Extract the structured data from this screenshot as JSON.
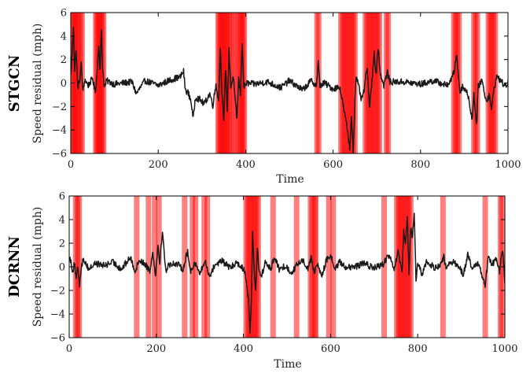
{
  "chart_data": [
    {
      "type": "line",
      "row_label": "STGCN",
      "xlabel": "Time",
      "ylabel": "Speed residual (mph)",
      "xlim": [
        0,
        1000
      ],
      "ylim": [
        -6,
        6
      ],
      "xticks": [
        0,
        200,
        400,
        600,
        800,
        1000
      ],
      "yticks": [
        -6,
        -4,
        -2,
        0,
        2,
        4,
        6
      ],
      "highlight_color": "#ff0000",
      "line_color": "#1a1a1a",
      "highlighted_times": [
        2,
        5,
        8,
        11,
        14,
        18,
        22,
        26,
        57,
        60,
        63,
        66,
        69,
        72,
        75,
        337,
        340,
        343,
        346,
        349,
        352,
        355,
        358,
        362,
        366,
        372,
        378,
        384,
        388,
        391,
        394,
        397,
        563,
        567,
        618,
        622,
        626,
        630,
        634,
        638,
        642,
        646,
        650,
        674,
        678,
        682,
        686,
        690,
        694,
        698,
        702,
        706,
        722,
        726,
        876,
        880,
        884,
        888,
        922,
        926,
        930,
        955,
        959,
        963,
        967,
        971
      ],
      "line_keypoints": [
        [
          0,
          0.6
        ],
        [
          3,
          2.5
        ],
        [
          6,
          4.9
        ],
        [
          9,
          1.0
        ],
        [
          12,
          3.0
        ],
        [
          16,
          -0.4
        ],
        [
          20,
          0.1
        ],
        [
          24,
          1.6
        ],
        [
          28,
          -0.8
        ],
        [
          32,
          0.3
        ],
        [
          40,
          -0.2
        ],
        [
          50,
          0.4
        ],
        [
          56,
          -0.8
        ],
        [
          60,
          0.8
        ],
        [
          64,
          3.4
        ],
        [
          67,
          1.0
        ],
        [
          70,
          4.6
        ],
        [
          73,
          1.2
        ],
        [
          77,
          -0.4
        ],
        [
          82,
          0.2
        ],
        [
          100,
          -0.1
        ],
        [
          140,
          0.1
        ],
        [
          150,
          -0.9
        ],
        [
          170,
          0.2
        ],
        [
          200,
          -0.2
        ],
        [
          230,
          0.3
        ],
        [
          250,
          0.5
        ],
        [
          258,
          1.0
        ],
        [
          262,
          -0.6
        ],
        [
          268,
          -0.8
        ],
        [
          275,
          -1.5
        ],
        [
          280,
          -3.1
        ],
        [
          285,
          -1.2
        ],
        [
          295,
          -1.4
        ],
        [
          305,
          -1.8
        ],
        [
          318,
          -0.9
        ],
        [
          325,
          -1.9
        ],
        [
          332,
          -0.1
        ],
        [
          338,
          -1.5
        ],
        [
          342,
          3.0
        ],
        [
          346,
          -0.8
        ],
        [
          350,
          -3.4
        ],
        [
          354,
          1.3
        ],
        [
          358,
          -2.3
        ],
        [
          362,
          2.8
        ],
        [
          366,
          -0.4
        ],
        [
          372,
          0.6
        ],
        [
          376,
          -1.6
        ],
        [
          380,
          -3.0
        ],
        [
          384,
          0.4
        ],
        [
          388,
          -0.9
        ],
        [
          392,
          3.5
        ],
        [
          396,
          -0.4
        ],
        [
          402,
          0.0
        ],
        [
          420,
          -0.1
        ],
        [
          450,
          0.1
        ],
        [
          480,
          -0.4
        ],
        [
          500,
          0.2
        ],
        [
          530,
          -0.6
        ],
        [
          550,
          0.2
        ],
        [
          562,
          -0.2
        ],
        [
          566,
          1.7
        ],
        [
          570,
          -0.2
        ],
        [
          580,
          0.0
        ],
        [
          600,
          -0.5
        ],
        [
          615,
          -0.3
        ],
        [
          620,
          -1.3
        ],
        [
          626,
          -2.5
        ],
        [
          632,
          -3.8
        ],
        [
          638,
          -5.6
        ],
        [
          642,
          -2.8
        ],
        [
          646,
          -5.8
        ],
        [
          652,
          0.5
        ],
        [
          658,
          -0.2
        ],
        [
          665,
          -1.5
        ],
        [
          672,
          -0.4
        ],
        [
          678,
          1.5
        ],
        [
          683,
          -2.2
        ],
        [
          688,
          -0.3
        ],
        [
          694,
          2.8
        ],
        [
          698,
          0.6
        ],
        [
          703,
          3.1
        ],
        [
          708,
          0.8
        ],
        [
          716,
          -0.2
        ],
        [
          724,
          0.9
        ],
        [
          730,
          0.1
        ],
        [
          760,
          0.1
        ],
        [
          800,
          -0.1
        ],
        [
          830,
          0.2
        ],
        [
          860,
          -0.2
        ],
        [
          872,
          0.4
        ],
        [
          878,
          1.2
        ],
        [
          882,
          2.5
        ],
        [
          886,
          1.0
        ],
        [
          890,
          -0.8
        ],
        [
          896,
          -0.3
        ],
        [
          902,
          -0.5
        ],
        [
          910,
          -1.2
        ],
        [
          918,
          -3.2
        ],
        [
          922,
          -0.8
        ],
        [
          928,
          -3.7
        ],
        [
          932,
          -0.3
        ],
        [
          940,
          0.3
        ],
        [
          950,
          -1.5
        ],
        [
          958,
          -1.0
        ],
        [
          962,
          -2.4
        ],
        [
          968,
          -0.4
        ],
        [
          975,
          0.6
        ],
        [
          985,
          0.1
        ],
        [
          995,
          -0.3
        ],
        [
          1000,
          0.1
        ]
      ]
    },
    {
      "type": "line",
      "row_label": "DCRNN",
      "xlabel": "Time",
      "ylabel": "Speed residual (mph)",
      "xlim": [
        0,
        1000
      ],
      "ylim": [
        -6,
        6
      ],
      "xticks": [
        0,
        200,
        400,
        600,
        800,
        1000
      ],
      "yticks": [
        -6,
        -4,
        -2,
        0,
        2,
        4,
        6
      ],
      "highlight_color": "#ff0000",
      "line_color": "#1a1a1a",
      "highlighted_times": [
        15,
        19,
        23,
        155,
        182,
        196,
        206,
        265,
        283,
        290,
        310,
        317,
        406,
        410,
        414,
        418,
        422,
        426,
        430,
        434,
        468,
        522,
        554,
        558,
        564,
        566,
        596,
        606,
        723,
        752,
        756,
        760,
        764,
        768,
        772,
        776,
        780,
        784,
        858,
        955,
        990,
        994
      ],
      "line_keypoints": [
        [
          0,
          0.8
        ],
        [
          4,
          0.5
        ],
        [
          8,
          -0.4
        ],
        [
          12,
          0.3
        ],
        [
          16,
          -1.1
        ],
        [
          20,
          0.0
        ],
        [
          24,
          -1.5
        ],
        [
          28,
          0.2
        ],
        [
          34,
          0.6
        ],
        [
          45,
          -0.2
        ],
        [
          60,
          0.3
        ],
        [
          80,
          0.1
        ],
        [
          100,
          0.4
        ],
        [
          120,
          -0.2
        ],
        [
          140,
          0.8
        ],
        [
          152,
          -0.4
        ],
        [
          160,
          0.6
        ],
        [
          175,
          0.2
        ],
        [
          185,
          -0.3
        ],
        [
          192,
          1.2
        ],
        [
          198,
          -0.6
        ],
        [
          204,
          1.8
        ],
        [
          208,
          0.4
        ],
        [
          214,
          3.0
        ],
        [
          218,
          1.2
        ],
        [
          222,
          -0.3
        ],
        [
          230,
          0.2
        ],
        [
          245,
          0.3
        ],
        [
          262,
          -0.2
        ],
        [
          268,
          0.9
        ],
        [
          272,
          1.2
        ],
        [
          278,
          -0.4
        ],
        [
          288,
          0.4
        ],
        [
          300,
          -0.6
        ],
        [
          312,
          0.5
        ],
        [
          322,
          -0.8
        ],
        [
          335,
          0.2
        ],
        [
          350,
          0.5
        ],
        [
          370,
          -0.1
        ],
        [
          385,
          0.4
        ],
        [
          395,
          0.0
        ],
        [
          404,
          -0.4
        ],
        [
          408,
          -1.6
        ],
        [
          412,
          -3.0
        ],
        [
          415,
          -5.6
        ],
        [
          418,
          -3.3
        ],
        [
          421,
          3.1
        ],
        [
          424,
          0.2
        ],
        [
          428,
          -2.0
        ],
        [
          432,
          1.5
        ],
        [
          436,
          -0.3
        ],
        [
          442,
          -0.8
        ],
        [
          450,
          0.4
        ],
        [
          462,
          -0.2
        ],
        [
          472,
          0.9
        ],
        [
          482,
          -0.3
        ],
        [
          495,
          0.1
        ],
        [
          510,
          -0.5
        ],
        [
          522,
          0.1
        ],
        [
          535,
          0.6
        ],
        [
          548,
          -0.1
        ],
        [
          556,
          0.8
        ],
        [
          562,
          -0.5
        ],
        [
          570,
          0.2
        ],
        [
          580,
          -0.8
        ],
        [
          590,
          0.5
        ],
        [
          600,
          1.0
        ],
        [
          610,
          -0.2
        ],
        [
          620,
          0.4
        ],
        [
          635,
          0.0
        ],
        [
          650,
          -0.1
        ],
        [
          675,
          0.3
        ],
        [
          700,
          -0.1
        ],
        [
          720,
          0.2
        ],
        [
          735,
          1.0
        ],
        [
          745,
          -0.3
        ],
        [
          755,
          1.2
        ],
        [
          760,
          0.3
        ],
        [
          764,
          -0.6
        ],
        [
          768,
          3.0
        ],
        [
          772,
          1.8
        ],
        [
          776,
          4.3
        ],
        [
          780,
          -0.6
        ],
        [
          784,
          3.4
        ],
        [
          788,
          2.4
        ],
        [
          792,
          4.7
        ],
        [
          796,
          -1.1
        ],
        [
          800,
          0.2
        ],
        [
          810,
          -0.6
        ],
        [
          820,
          0.4
        ],
        [
          840,
          -0.1
        ],
        [
          855,
          0.3
        ],
        [
          860,
          0.9
        ],
        [
          866,
          -0.4
        ],
        [
          875,
          0.5
        ],
        [
          890,
          0.2
        ],
        [
          905,
          -0.6
        ],
        [
          915,
          1.0
        ],
        [
          925,
          -0.2
        ],
        [
          940,
          0.3
        ],
        [
          955,
          -1.6
        ],
        [
          962,
          0.8
        ],
        [
          970,
          0.2
        ],
        [
          980,
          0.6
        ],
        [
          988,
          -0.4
        ],
        [
          992,
          1.0
        ],
        [
          996,
          1.2
        ],
        [
          1000,
          -1.6
        ]
      ]
    }
  ]
}
